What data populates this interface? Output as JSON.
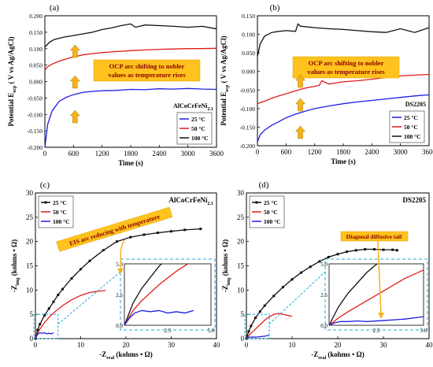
{
  "chart_data": [
    {
      "type": "line",
      "panel_label": "(a)",
      "sample": "AlCoCrFeNi2.1",
      "annotation": "OCP arc shifting to nobler\nvalues as temperature rises",
      "xlabel": "Time (s)",
      "ylabel": "Potential Eocp ( V vs Ag/AgCl)",
      "xlim": [
        0,
        3600
      ],
      "ylim": [
        -0.2,
        0.2
      ],
      "xticks": [
        0,
        600,
        1200,
        1800,
        2400,
        3000,
        3600
      ],
      "yticks": [
        -0.2,
        -0.15,
        -0.1,
        -0.05,
        0,
        0.05,
        0.1,
        0.15,
        0.2
      ],
      "ytick_labels": [
        "-0.200",
        "-0.150",
        "-0.100",
        "-0.050",
        "0.000",
        "0.050",
        "0.100",
        "0.150",
        "0.200"
      ],
      "legend_position": "bottom-right",
      "series": [
        {
          "name": "25 °C",
          "color": "#1f1fe6",
          "x": [
            0,
            60,
            150,
            300,
            450,
            600,
            800,
            1000,
            1200,
            1500,
            1800,
            2100,
            2400,
            2700,
            3000,
            3300,
            3600
          ],
          "y": [
            -0.2,
            -0.13,
            -0.09,
            -0.06,
            -0.048,
            -0.04,
            -0.033,
            -0.03,
            -0.028,
            -0.027,
            -0.024,
            -0.025,
            -0.022,
            -0.023,
            -0.021,
            -0.023,
            -0.024
          ]
        },
        {
          "name": "50 °C",
          "color": "#e01b1b",
          "x": [
            0,
            60,
            150,
            300,
            450,
            600,
            800,
            1000,
            1200,
            1500,
            1800,
            2100,
            2400,
            2700,
            3000,
            3300,
            3600
          ],
          "y": [
            0.035,
            0.045,
            0.053,
            0.062,
            0.069,
            0.075,
            0.081,
            0.085,
            0.088,
            0.091,
            0.094,
            0.096,
            0.098,
            0.099,
            0.1,
            0.1,
            0.101
          ]
        },
        {
          "name": "100 °C",
          "color": "#111111",
          "x": [
            0,
            100,
            200,
            400,
            600,
            800,
            1000,
            1200,
            1400,
            1600,
            1800,
            1900,
            2100,
            2400,
            2700,
            3000,
            3300,
            3600
          ],
          "y": [
            0.105,
            0.12,
            0.128,
            0.135,
            0.14,
            0.145,
            0.15,
            0.158,
            0.163,
            0.17,
            0.175,
            0.165,
            0.172,
            0.17,
            0.168,
            0.165,
            0.168,
            0.16
          ]
        }
      ]
    },
    {
      "type": "line",
      "panel_label": "(b)",
      "sample": "DS2205",
      "annotation": "OCP arc shifting to nobler\nvalues as temperature rises",
      "xlabel": "Time (s)",
      "ylabel": "Potential Eocp ( V vs Ag/AgCl)",
      "xlim": [
        0,
        3600
      ],
      "ylim": [
        -0.2,
        0.15
      ],
      "xticks": [
        0,
        600,
        1200,
        1800,
        2400,
        3000,
        3600
      ],
      "yticks": [
        -0.2,
        -0.15,
        -0.1,
        -0.05,
        0,
        0.05,
        0.1,
        0.15
      ],
      "ytick_labels": [
        "-0.200",
        "-0.150",
        "-0.100",
        "-0.050",
        "0.000",
        "0.050",
        "0.100",
        "0.150"
      ],
      "legend_position": "bottom-right",
      "series": [
        {
          "name": "25 °C",
          "color": "#1f1fe6",
          "x": [
            0,
            60,
            150,
            300,
            450,
            600,
            800,
            1000,
            1200,
            1500,
            1800,
            2100,
            2400,
            2700,
            3000,
            3300,
            3600
          ],
          "y": [
            -0.19,
            -0.17,
            -0.158,
            -0.145,
            -0.135,
            -0.125,
            -0.115,
            -0.107,
            -0.1,
            -0.093,
            -0.087,
            -0.082,
            -0.078,
            -0.074,
            -0.07,
            -0.066,
            -0.063
          ]
        },
        {
          "name": "50 °C",
          "color": "#e01b1b",
          "x": [
            0,
            150,
            300,
            450,
            600,
            800,
            1000,
            1200,
            1300,
            1350,
            1500,
            1800,
            2100,
            2400,
            2700,
            3000,
            3300,
            3600
          ],
          "y": [
            -0.087,
            -0.08,
            -0.072,
            -0.066,
            -0.06,
            -0.052,
            -0.045,
            -0.04,
            -0.037,
            -0.025,
            -0.034,
            -0.028,
            -0.025,
            -0.021,
            -0.016,
            -0.012,
            -0.01,
            -0.008
          ]
        },
        {
          "name": "100 °C",
          "color": "#111111",
          "x": [
            0,
            60,
            150,
            300,
            450,
            600,
            800,
            850,
            900,
            1200,
            1500,
            1800,
            2100,
            2400,
            2700,
            3000,
            3300,
            3600
          ],
          "y": [
            0.04,
            0.075,
            0.095,
            0.105,
            0.108,
            0.11,
            0.108,
            0.128,
            0.122,
            0.118,
            0.115,
            0.113,
            0.11,
            0.107,
            0.105,
            0.115,
            0.105,
            0.118
          ]
        }
      ]
    },
    {
      "type": "line",
      "panel_label": "(c)",
      "sample": "AlCoCrFeNi2.1",
      "annotation": "EIS arc reducing with temperature",
      "xlabel": "-Zreal (kohms • Ω)",
      "ylabel": "-Zimg (kohms • Ω)",
      "xlim": [
        0,
        40
      ],
      "ylim": [
        0,
        30
      ],
      "xticks": [
        0,
        10,
        20,
        30,
        40
      ],
      "yticks": [
        0,
        5,
        10,
        15,
        20,
        25,
        30
      ],
      "inset": {
        "xlim": [
          0,
          5
        ],
        "ylim": [
          0,
          5
        ],
        "xticks": [
          2.5,
          5.0
        ],
        "yticks": [
          0,
          2.5,
          5.0
        ]
      },
      "legend_position": "top-left",
      "series": [
        {
          "name": "25 °C",
          "color": "#111111",
          "x": [
            0,
            0.5,
            1,
            2,
            3,
            4,
            5,
            6,
            8,
            10,
            12,
            15,
            18,
            21,
            24,
            27,
            30,
            33,
            36.5
          ],
          "y": [
            0,
            1.8,
            3,
            4.8,
            6.2,
            7.6,
            9,
            10.2,
            12.4,
            14.3,
            16,
            18.2,
            20,
            20.9,
            21.4,
            21.8,
            22.1,
            22.4,
            22.6
          ]
        },
        {
          "name": "50 °C",
          "color": "#e01b1b",
          "x": [
            0,
            0.5,
            1,
            2,
            3,
            4,
            6,
            8,
            10,
            12,
            14,
            15.5
          ],
          "y": [
            0,
            1.2,
            2,
            3.3,
            4.4,
            5.3,
            6.8,
            8,
            8.9,
            9.5,
            9.8,
            9.9
          ]
        },
        {
          "name": "100 °C",
          "color": "#1f1fe6",
          "x": [
            0,
            0.3,
            0.6,
            1,
            1.5,
            2,
            2.5,
            3,
            3.5,
            4
          ],
          "y": [
            0,
            0.6,
            1.0,
            1.2,
            1.1,
            1.2,
            1.0,
            1.1,
            1.0,
            1.2
          ]
        }
      ]
    },
    {
      "type": "line",
      "panel_label": "(d)",
      "sample": "DS2205",
      "annotation": "Diagonal diffusive tail",
      "xlabel": "-Zreal (kohms • Ω)",
      "ylabel": "-Zimg (kohms • Ω)",
      "xlim": [
        0,
        40
      ],
      "ylim": [
        0,
        30
      ],
      "xticks": [
        0,
        10,
        20,
        30,
        40
      ],
      "yticks": [
        0,
        5,
        10,
        15,
        20,
        25,
        30
      ],
      "inset": {
        "xlim": [
          0,
          5
        ],
        "ylim": [
          0,
          5
        ],
        "xticks": [
          2.5,
          5.0
        ],
        "yticks": [
          0,
          2.5,
          5.0
        ]
      },
      "legend_position": "top-left",
      "series": [
        {
          "name": "25 °C",
          "color": "#111111",
          "x": [
            0,
            0.5,
            1,
            2,
            3,
            4,
            6,
            8,
            10,
            12,
            14,
            16,
            18,
            20,
            22,
            24,
            26,
            28,
            30,
            32,
            33
          ],
          "y": [
            0,
            1.5,
            2.6,
            4.3,
            5.6,
            6.8,
            8.8,
            10.6,
            12.2,
            13.6,
            14.8,
            15.9,
            16.8,
            17.4,
            17.9,
            18.2,
            18.4,
            18.4,
            18.3,
            18.3,
            18.2
          ]
        },
        {
          "name": "50 °C",
          "color": "#e01b1b",
          "x": [
            0,
            0.5,
            1,
            2,
            3,
            4,
            5,
            6,
            7,
            8,
            9,
            10
          ],
          "y": [
            0,
            0.6,
            1.1,
            2,
            2.9,
            3.8,
            4.5,
            5.0,
            5.2,
            5.0,
            4.8,
            4.6
          ]
        },
        {
          "name": "100 °C",
          "color": "#1f1fe6",
          "x": [
            0,
            0.3,
            0.6,
            1,
            1.5,
            2,
            3,
            4,
            5
          ],
          "y": [
            0,
            0.2,
            0.3,
            0.3,
            0.35,
            0.3,
            0.4,
            0.5,
            0.7
          ]
        }
      ]
    }
  ]
}
